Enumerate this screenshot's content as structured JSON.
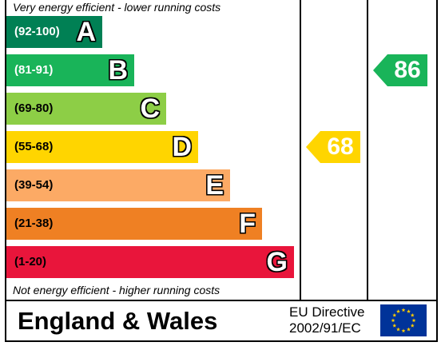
{
  "header_caption": "Very energy efficient - lower running costs",
  "footer_caption": "Not energy efficient - higher running costs",
  "chart_data": {
    "type": "bar",
    "bands": [
      {
        "range": "(92-100)",
        "letter": "A",
        "color": "#008054",
        "range_color": "#ffffff"
      },
      {
        "range": "(81-91)",
        "letter": "B",
        "color": "#19b459",
        "range_color": "#ffffff"
      },
      {
        "range": "(69-80)",
        "letter": "C",
        "color": "#8dce46",
        "range_color": "#000000"
      },
      {
        "range": "(55-68)",
        "letter": "D",
        "color": "#ffd500",
        "range_color": "#000000"
      },
      {
        "range": "(39-54)",
        "letter": "E",
        "color": "#fcaa65",
        "range_color": "#000000"
      },
      {
        "range": "(21-38)",
        "letter": "F",
        "color": "#ef8023",
        "range_color": "#000000"
      },
      {
        "range": "(1-20)",
        "letter": "G",
        "color": "#e9153b",
        "range_color": "#000000"
      }
    ],
    "current": {
      "value": "68",
      "band": "D",
      "color": "#ffd500"
    },
    "potential": {
      "value": "86",
      "band": "B",
      "color": "#19b459"
    }
  },
  "footer": {
    "region": "England & Wales",
    "directive_line1": "EU Directive",
    "directive_line2": "2002/91/EC"
  },
  "flag": {
    "background": "#003399",
    "stars": "#ffcc00",
    "icon": "eu-flag-icon"
  }
}
